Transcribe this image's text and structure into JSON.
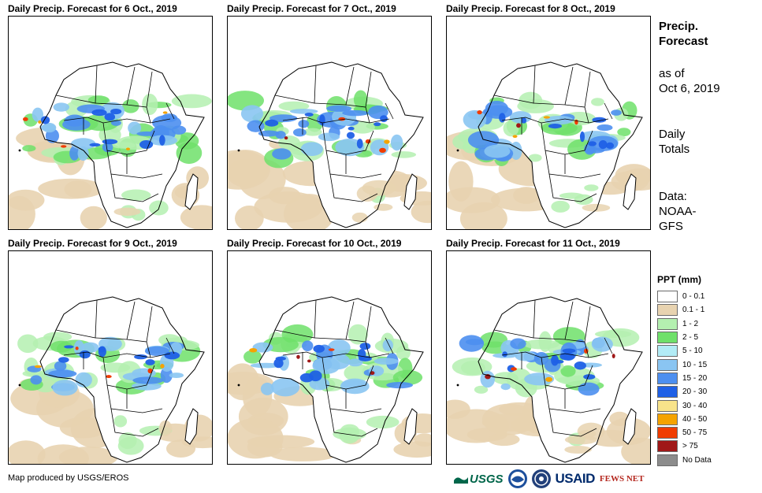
{
  "panels": [
    {
      "title": "Daily Precip. Forecast for 6 Oct., 2019"
    },
    {
      "title": "Daily Precip. Forecast for 7 Oct., 2019"
    },
    {
      "title": "Daily Precip. Forecast for 8 Oct., 2019"
    },
    {
      "title": "Daily Precip. Forecast for 9 Oct., 2019"
    },
    {
      "title": "Daily Precip. Forecast for 10 Oct., 2019"
    },
    {
      "title": "Daily Precip. Forecast for 11 Oct., 2019"
    }
  ],
  "sidebar": {
    "title_line1": "Precip.",
    "title_line2": "Forecast",
    "asof_line1": "as of",
    "asof_line2": "Oct 6, 2019",
    "totals_line1": "Daily",
    "totals_line2": "Totals",
    "data_line1": "Data:",
    "data_line2": "NOAA-",
    "data_line3": "GFS"
  },
  "legend": {
    "title": "PPT (mm)",
    "items": [
      {
        "label": "0 - 0.1",
        "color": "#ffffff"
      },
      {
        "label": "0.1 - 1",
        "color": "#e8d3b0"
      },
      {
        "label": "1 - 2",
        "color": "#b4f0b0"
      },
      {
        "label": "2 - 5",
        "color": "#6fe06a"
      },
      {
        "label": "5 - 10",
        "color": "#b2ecf6"
      },
      {
        "label": "10 - 15",
        "color": "#8ac5f2"
      },
      {
        "label": "15 - 20",
        "color": "#4d8ff0"
      },
      {
        "label": "20 - 30",
        "color": "#1f60e6"
      },
      {
        "label": "30 - 40",
        "color": "#f8e38a"
      },
      {
        "label": "40 - 50",
        "color": "#f5a300"
      },
      {
        "label": "50 - 75",
        "color": "#f03c00"
      },
      {
        "label": "> 75",
        "color": "#a01818"
      },
      {
        "label": "No Data",
        "color": "#8c8c8c"
      }
    ]
  },
  "footer": {
    "credit": "Map produced by USGS/EROS",
    "logo_usgs": "USGS",
    "logo_usaid": "USAID",
    "logo_fews": "FEWS NET"
  }
}
